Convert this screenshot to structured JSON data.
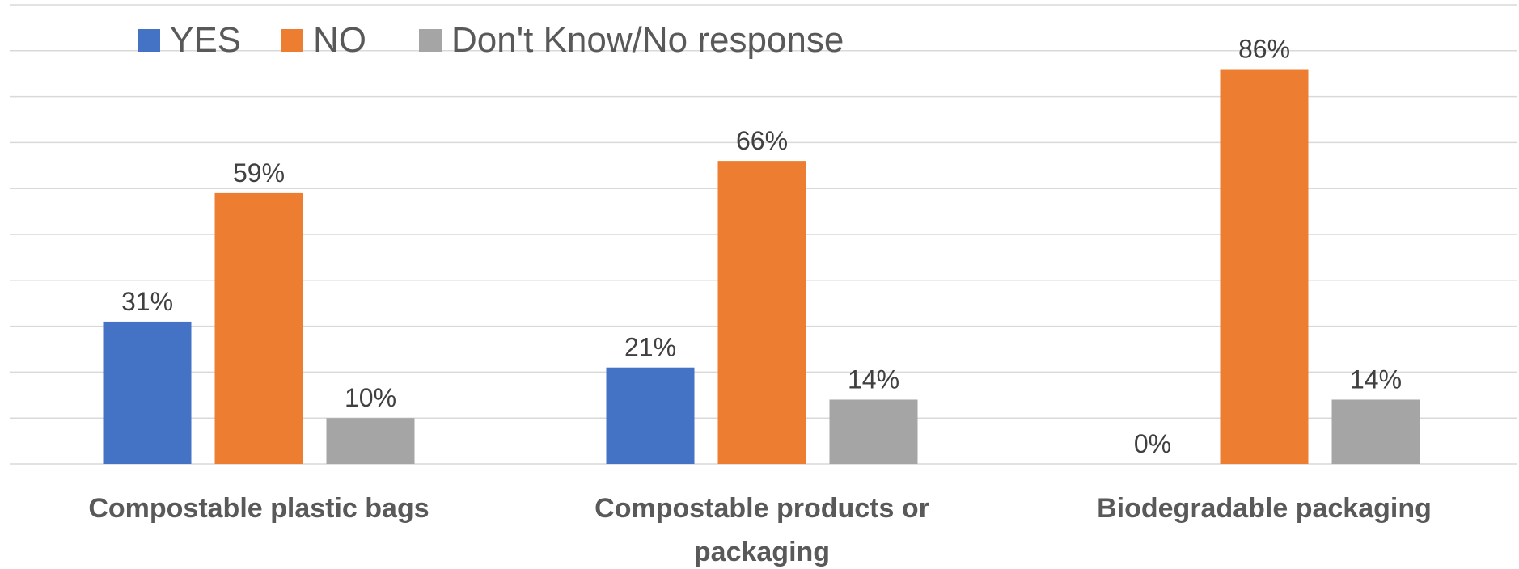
{
  "chart_data": {
    "type": "bar",
    "categories": [
      [
        "Compostable plastic bags"
      ],
      [
        "Compostable products or",
        "packaging"
      ],
      [
        "Biodegradable packaging"
      ]
    ],
    "series": [
      {
        "name": "YES",
        "color": "#4472c4",
        "values": [
          31,
          21,
          0
        ],
        "labels": [
          "31%",
          "21%",
          "0%"
        ]
      },
      {
        "name": "NO",
        "color": "#ed7d31",
        "values": [
          59,
          66,
          86
        ],
        "labels": [
          "59%",
          "66%",
          "86%"
        ]
      },
      {
        "name": "Don't Know/No response",
        "color": "#a5a5a5",
        "values": [
          10,
          14,
          14
        ],
        "labels": [
          "10%",
          "14%",
          "14%"
        ]
      }
    ],
    "ylim": [
      0,
      100
    ],
    "grid": true,
    "legend_position": "top-left"
  }
}
